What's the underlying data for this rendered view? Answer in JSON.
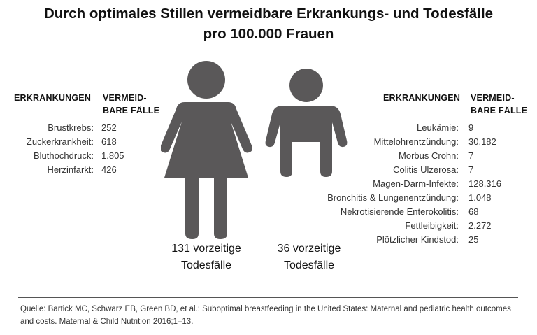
{
  "title": {
    "line1": "Durch optimales Stillen vermeidbare Erkrankungs- und Todesfälle",
    "line2": "pro 100.000 Frauen"
  },
  "left": {
    "header_disease": "ERKRANKUNGEN",
    "header_cases_1": "VERMEID-",
    "header_cases_2": "BARE FÄLLE",
    "rows": [
      {
        "label": "Brustkrebs:",
        "value": "252"
      },
      {
        "label": "Zuckerkrankheit:",
        "value": "618"
      },
      {
        "label": "Bluthochdruck:",
        "value": "1.805"
      },
      {
        "label": "Herzinfarkt:",
        "value": "426"
      }
    ]
  },
  "right": {
    "header_disease": "ERKRANKUNGEN",
    "header_cases_1": "VERMEID-",
    "header_cases_2": "BARE FÄLLE",
    "rows": [
      {
        "label": "Leukämie:",
        "value": "9"
      },
      {
        "label": "Mittelohrentzündung:",
        "value": "30.182"
      },
      {
        "label": "Morbus Crohn:",
        "value": "7"
      },
      {
        "label": "Colitis Ulzerosa:",
        "value": "7"
      },
      {
        "label": "Magen-Darm-Infekte:",
        "value": "128.316"
      },
      {
        "label": "Bronchitis & Lungenentzündung:",
        "value": "1.048"
      },
      {
        "label": "Nekrotisierende Enterokolitis:",
        "value": "68"
      },
      {
        "label": "Fettleibigkeit:",
        "value": "2.272"
      },
      {
        "label": "Plötzlicher Kindstod:",
        "value": "25"
      }
    ]
  },
  "women": {
    "icon": "woman-icon",
    "deaths_line1": "131 vorzeitige",
    "deaths_line2": "Todesfälle"
  },
  "child": {
    "icon": "child-icon",
    "deaths_line1": "36 vorzeitige",
    "deaths_line2": "Todesfälle"
  },
  "source": "Quelle: Bartick MC, Schwarz EB, Green BD, et al.: Suboptimal breastfeeding in the United States: Maternal and pediatric health outcomes and costs. Maternal & Child Nutrition 2016;1–13.",
  "colors": {
    "figure": "#5a5859",
    "divider": "#555555"
  }
}
